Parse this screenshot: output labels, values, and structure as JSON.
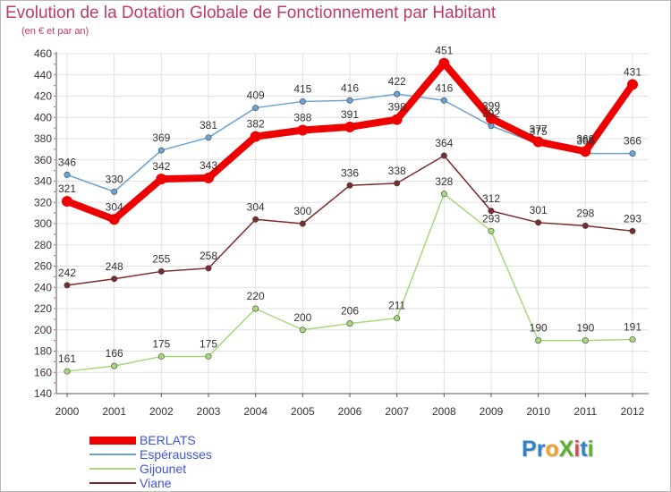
{
  "header": {
    "title": "Evolution de la Dotation Globale de Fonctionnement par Habitant",
    "subtitle": "(en € et par an)"
  },
  "logo": {
    "text": "ProXiti",
    "letters": [
      {
        "ch": "P",
        "color": "#2f82c7"
      },
      {
        "ch": "r",
        "color": "#2f82c7"
      },
      {
        "ch": "o",
        "color": "#f0a22a"
      },
      {
        "ch": "X",
        "color": "#5fae2e"
      },
      {
        "ch": "i",
        "color": "#d84b4b"
      },
      {
        "ch": "t",
        "color": "#2f82c7"
      },
      {
        "ch": "i",
        "color": "#5fae2e"
      }
    ]
  },
  "chart_data": {
    "type": "line",
    "title": "Evolution de la Dotation Globale de Fonctionnement par Habitant",
    "subtitle": "(en € et par an)",
    "xlabel": "",
    "ylabel": "",
    "x": [
      "2000",
      "2001",
      "2002",
      "2003",
      "2004",
      "2005",
      "2006",
      "2007",
      "2008",
      "2009",
      "2010",
      "2011",
      "2012"
    ],
    "ylim": [
      140,
      460
    ],
    "yticks": [
      140,
      160,
      180,
      200,
      220,
      240,
      260,
      280,
      300,
      320,
      340,
      360,
      380,
      400,
      420,
      440,
      460
    ],
    "grid": true,
    "legend": "bottom-left",
    "series": [
      {
        "name": "Espérausses",
        "color": "#6aa3d5",
        "values": [
          346,
          330,
          369,
          381,
          409,
          415,
          416,
          422,
          416,
          392,
          375,
          366,
          366
        ]
      },
      {
        "name": "Gijounet",
        "color": "#a6d87a",
        "values": [
          161,
          166,
          175,
          175,
          220,
          200,
          206,
          211,
          328,
          293,
          190,
          190,
          191
        ]
      },
      {
        "name": "Viane",
        "color": "#7a2b2b",
        "values": [
          242,
          248,
          255,
          258,
          304,
          300,
          336,
          338,
          364,
          312,
          301,
          298,
          293
        ]
      },
      {
        "name": "BERLATS",
        "color": "#ee0000",
        "values": [
          321,
          304,
          342,
          343,
          382,
          388,
          391,
          398,
          451,
          399,
          377,
          368,
          431
        ]
      }
    ]
  }
}
